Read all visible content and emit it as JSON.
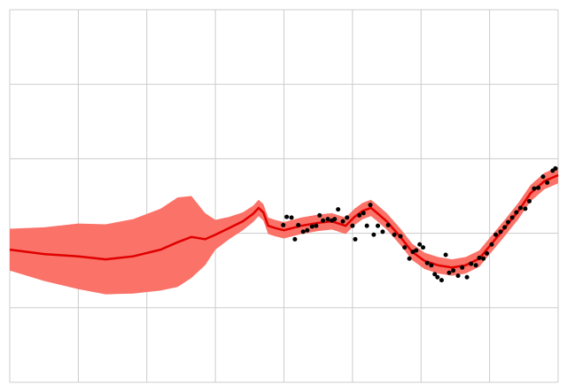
{
  "chart_data": {
    "type": "line",
    "x": [
      0,
      0.5,
      1,
      1.4,
      1.8,
      2.2,
      2.45,
      2.65,
      2.85,
      3,
      3.2,
      3.4,
      3.55,
      3.63,
      3.7,
      3.77,
      3.87,
      4,
      4.25,
      4.5,
      4.7,
      4.9,
      5.03,
      5.15,
      5.27,
      5.35,
      5.5,
      5.7,
      5.87,
      6.05,
      6.25,
      6.45,
      6.65,
      6.85,
      7.03,
      7.22,
      7.42,
      7.6,
      7.8,
      8
    ],
    "series": [
      {
        "color": "#e00000",
        "values": [
          1.78,
          1.72,
          1.69,
          1.65,
          1.69,
          1.78,
          1.88,
          1.95,
          1.92,
          1.98,
          2.07,
          2.16,
          2.26,
          2.34,
          2.28,
          2.1,
          2.07,
          2.04,
          2.1,
          2.14,
          2.16,
          2.1,
          2.22,
          2.3,
          2.34,
          2.28,
          2.16,
          1.95,
          1.75,
          1.63,
          1.57,
          1.54,
          1.57,
          1.66,
          1.86,
          2.07,
          2.3,
          2.54,
          2.7,
          2.78
        ]
      }
    ],
    "band": {
      "color": "#fa7268",
      "lower": [
        1.5,
        1.36,
        1.25,
        1.18,
        1.19,
        1.23,
        1.28,
        1.4,
        1.57,
        1.78,
        1.92,
        2.04,
        2.15,
        2.23,
        2.17,
        1.99,
        1.96,
        1.93,
        1.99,
        2.03,
        2.05,
        1.99,
        2.11,
        2.19,
        2.23,
        2.17,
        2.05,
        1.84,
        1.64,
        1.52,
        1.46,
        1.43,
        1.46,
        1.55,
        1.75,
        1.96,
        2.19,
        2.43,
        2.59,
        2.67
      ],
      "upper": [
        2.06,
        2.08,
        2.13,
        2.12,
        2.19,
        2.33,
        2.48,
        2.5,
        2.27,
        2.18,
        2.22,
        2.28,
        2.37,
        2.45,
        2.39,
        2.21,
        2.18,
        2.15,
        2.21,
        2.25,
        2.27,
        2.21,
        2.33,
        2.41,
        2.45,
        2.39,
        2.27,
        2.06,
        1.86,
        1.74,
        1.68,
        1.65,
        1.68,
        1.77,
        1.97,
        2.18,
        2.41,
        2.65,
        2.81,
        2.89
      ]
    },
    "scatter": {
      "color": "#000000",
      "x": [
        3.99,
        4.04,
        4.11,
        4.16,
        4.21,
        4.28,
        4.34,
        4.41,
        4.47,
        4.52,
        4.57,
        4.64,
        4.7,
        4.74,
        4.79,
        4.86,
        4.92,
        5,
        5.04,
        5.1,
        5.16,
        5.21,
        5.26,
        5.31,
        5.37,
        5.44,
        5.52,
        5.61,
        5.7,
        5.76,
        5.83,
        5.88,
        5.93,
        5.98,
        6.03,
        6.09,
        6.15,
        6.2,
        6.24,
        6.3,
        6.36,
        6.41,
        6.47,
        6.54,
        6.6,
        6.67,
        6.73,
        6.8,
        6.85,
        6.91,
        6.96,
        7.03,
        7.09,
        7.16,
        7.22,
        7.27,
        7.33,
        7.39,
        7.45,
        7.52,
        7.58,
        7.65,
        7.71,
        7.78,
        7.84,
        7.92,
        7.96
      ],
      "y": [
        2.11,
        2.22,
        2.21,
        1.92,
        2.11,
        2.02,
        2.04,
        2.09,
        2.1,
        2.24,
        2.17,
        2.19,
        2.17,
        2.19,
        2.32,
        2.16,
        2.21,
        2.1,
        1.92,
        2.24,
        2.27,
        2.1,
        2.38,
        1.98,
        2.1,
        2.02,
        2.11,
        1.98,
        1.96,
        1.81,
        1.66,
        1.75,
        1.77,
        1.85,
        1.81,
        1.6,
        1.57,
        1.45,
        1.41,
        1.37,
        1.71,
        1.47,
        1.5,
        1.43,
        1.54,
        1.41,
        1.59,
        1.57,
        1.67,
        1.66,
        1.73,
        1.85,
        1.98,
        2.02,
        2.08,
        2.15,
        2.21,
        2.28,
        2.34,
        2.33,
        2.43,
        2.6,
        2.61,
        2.76,
        2.68,
        2.84,
        2.87
      ]
    },
    "xlim": [
      0,
      8
    ],
    "ylim": [
      0,
      5
    ],
    "xticks": [
      0,
      1,
      2,
      3,
      4,
      5,
      6,
      7,
      8
    ],
    "yticks": [
      0,
      1,
      2,
      3,
      4,
      5
    ],
    "grid": true
  }
}
